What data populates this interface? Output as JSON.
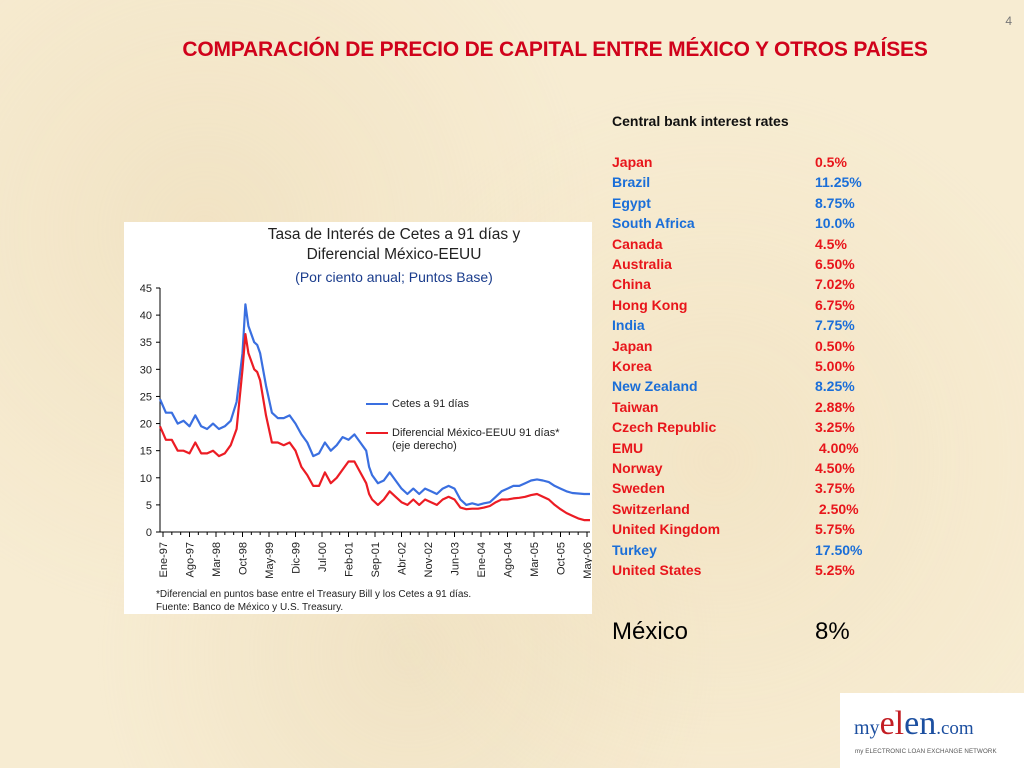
{
  "slide": {
    "number": "4",
    "title": "COMPARACIÓN DE PRECIO DE CAPITAL ENTRE MÉXICO Y OTROS PAÍSES"
  },
  "chart_data": {
    "type": "line",
    "title": "Tasa de Interés de Cetes a 91 días y",
    "title_line2": "Diferencial México-EEUU",
    "subtitle": "(Por ciento anual; Puntos Base)",
    "ylim": [
      0,
      45
    ],
    "yticks": [
      "0",
      "5",
      "10",
      "15",
      "20",
      "25",
      "30",
      "35",
      "40",
      "45"
    ],
    "x_ticks": [
      "Ene-97",
      "Ago-97",
      "Mar-98",
      "Oct-98",
      "May-99",
      "Dic-99",
      "Jul-00",
      "Feb-01",
      "Sep-01",
      "Abr-02",
      "Nov-02",
      "Jun-03",
      "Ene-04",
      "Ago-04",
      "Mar-05",
      "Oct-05",
      "May-06"
    ],
    "grid": false,
    "legend_position": "right",
    "series": [
      {
        "name": "Cetes a 91 días",
        "color": "#3a6fe0",
        "points": [
          [
            0,
            24.5
          ],
          [
            1,
            22
          ],
          [
            2,
            22
          ],
          [
            3,
            20
          ],
          [
            4,
            20.5
          ],
          [
            5,
            19.5
          ],
          [
            6,
            21.5
          ],
          [
            7,
            19.5
          ],
          [
            8,
            19
          ],
          [
            9,
            20
          ],
          [
            10,
            19
          ],
          [
            11,
            19.5
          ],
          [
            12,
            20.5
          ],
          [
            13,
            24
          ],
          [
            14,
            33
          ],
          [
            14.5,
            42
          ],
          [
            15,
            38
          ],
          [
            16,
            35
          ],
          [
            16.5,
            34.5
          ],
          [
            17,
            33
          ],
          [
            18,
            27
          ],
          [
            19,
            22
          ],
          [
            20,
            21
          ],
          [
            21,
            21
          ],
          [
            22,
            21.5
          ],
          [
            23,
            20
          ],
          [
            24,
            18
          ],
          [
            25,
            16.5
          ],
          [
            26,
            14
          ],
          [
            27,
            14.5
          ],
          [
            28,
            16.5
          ],
          [
            29,
            15
          ],
          [
            30,
            16
          ],
          [
            31,
            17.5
          ],
          [
            32,
            17
          ],
          [
            33,
            18
          ],
          [
            34,
            16.5
          ],
          [
            35,
            15
          ],
          [
            35.5,
            12
          ],
          [
            36,
            10.5
          ],
          [
            37,
            9
          ],
          [
            38,
            9.5
          ],
          [
            39,
            11
          ],
          [
            40,
            9.5
          ],
          [
            41,
            8
          ],
          [
            42,
            7
          ],
          [
            43,
            8
          ],
          [
            44,
            7
          ],
          [
            45,
            8
          ],
          [
            46,
            7.5
          ],
          [
            47,
            7
          ],
          [
            48,
            8
          ],
          [
            49,
            8.5
          ],
          [
            50,
            8
          ],
          [
            51,
            6
          ],
          [
            52,
            5
          ],
          [
            53,
            5.3
          ],
          [
            54,
            5
          ],
          [
            55,
            5.3
          ],
          [
            56,
            5.5
          ],
          [
            57,
            6.5
          ],
          [
            58,
            7.5
          ],
          [
            59,
            8
          ],
          [
            60,
            8.5
          ],
          [
            61,
            8.5
          ],
          [
            62,
            9
          ],
          [
            63,
            9.5
          ],
          [
            64,
            9.7
          ],
          [
            65,
            9.5
          ],
          [
            66,
            9.2
          ],
          [
            67,
            8.5
          ],
          [
            68,
            8
          ],
          [
            69,
            7.5
          ],
          [
            70,
            7.2
          ],
          [
            71,
            7.1
          ],
          [
            72,
            7
          ],
          [
            73,
            7
          ]
        ]
      },
      {
        "name": "Diferencial México-EEUU 91 días*",
        "name_line2": "(eje derecho)",
        "color": "#ec1c24",
        "points": [
          [
            0,
            19.5
          ],
          [
            1,
            17
          ],
          [
            2,
            17
          ],
          [
            3,
            15
          ],
          [
            4,
            15
          ],
          [
            5,
            14.5
          ],
          [
            6,
            16.5
          ],
          [
            7,
            14.5
          ],
          [
            8,
            14.5
          ],
          [
            9,
            15
          ],
          [
            10,
            14
          ],
          [
            11,
            14.5
          ],
          [
            12,
            16
          ],
          [
            13,
            19
          ],
          [
            14,
            30
          ],
          [
            14.5,
            36.5
          ],
          [
            15,
            33
          ],
          [
            16,
            30
          ],
          [
            16.5,
            29.5
          ],
          [
            17,
            28
          ],
          [
            18,
            21.5
          ],
          [
            19,
            16.5
          ],
          [
            20,
            16.5
          ],
          [
            21,
            16
          ],
          [
            22,
            16.5
          ],
          [
            23,
            15
          ],
          [
            24,
            12
          ],
          [
            25,
            10.5
          ],
          [
            26,
            8.5
          ],
          [
            27,
            8.5
          ],
          [
            28,
            11
          ],
          [
            29,
            9
          ],
          [
            30,
            10
          ],
          [
            31,
            11.5
          ],
          [
            32,
            13
          ],
          [
            33,
            13
          ],
          [
            34,
            11
          ],
          [
            35,
            9
          ],
          [
            35.5,
            7
          ],
          [
            36,
            6
          ],
          [
            37,
            5
          ],
          [
            38,
            6
          ],
          [
            39,
            7.5
          ],
          [
            40,
            6.5
          ],
          [
            41,
            5.5
          ],
          [
            42,
            5
          ],
          [
            43,
            6
          ],
          [
            44,
            5
          ],
          [
            45,
            6
          ],
          [
            46,
            5.5
          ],
          [
            47,
            5
          ],
          [
            48,
            6
          ],
          [
            49,
            6.5
          ],
          [
            50,
            6
          ],
          [
            51,
            4.5
          ],
          [
            52,
            4.2
          ],
          [
            53,
            4.3
          ],
          [
            54,
            4.3
          ],
          [
            55,
            4.5
          ],
          [
            56,
            4.8
          ],
          [
            57,
            5.5
          ],
          [
            58,
            6
          ],
          [
            59,
            6
          ],
          [
            60,
            6.2
          ],
          [
            61,
            6.3
          ],
          [
            62,
            6.5
          ],
          [
            63,
            6.8
          ],
          [
            64,
            7
          ],
          [
            65,
            6.5
          ],
          [
            66,
            6
          ],
          [
            67,
            5
          ],
          [
            68,
            4.2
          ],
          [
            69,
            3.5
          ],
          [
            70,
            3
          ],
          [
            71,
            2.5
          ],
          [
            72,
            2.2
          ],
          [
            73,
            2.2
          ]
        ]
      }
    ],
    "x_domain": [
      0,
      73
    ],
    "footnote_line1": "*Diferencial en puntos base entre el Treasury Bill y los Cetes a 91 días.",
    "footnote_line2": "Fuente: Banco de México y U.S. Treasury."
  },
  "rates": {
    "title": "Central bank interest rates",
    "rows": [
      {
        "country": "Japan",
        "value": "0.5%",
        "color": "#e8151b"
      },
      {
        "country": "Brazil",
        "value": "11.25%",
        "color": "#1a6ed8"
      },
      {
        "country": "Egypt",
        "value": "8.75%",
        "color": "#1a6ed8"
      },
      {
        "country": "South Africa",
        "value": "10.0%",
        "color": "#1a6ed8"
      },
      {
        "country": "Canada",
        "value": "4.5%",
        "color": "#e8151b"
      },
      {
        "country": "Australia",
        "value": "6.50%",
        "color": "#e8151b"
      },
      {
        "country": "China",
        "value": "7.02%",
        "color": "#e8151b"
      },
      {
        "country": "Hong Kong",
        "value": "6.75%",
        "color": "#e8151b"
      },
      {
        "country": "India",
        "value": "7.75%",
        "color": "#1a6ed8"
      },
      {
        "country": "Japan",
        "value": "0.50%",
        "color": "#e8151b"
      },
      {
        "country": "Korea",
        "value": "5.00%",
        "color": "#e8151b"
      },
      {
        "country": "New Zealand",
        "value": "8.25%",
        "color": "#1a6ed8"
      },
      {
        "country": "Taiwan",
        "value": "2.88%",
        "color": "#e8151b"
      },
      {
        "country": "Czech Republic",
        "value": "3.25%",
        "color": "#e8151b"
      },
      {
        "country": "EMU",
        "value": " 4.00%",
        "color": "#e8151b"
      },
      {
        "country": "Norway",
        "value": "4.50%",
        "color": "#e8151b"
      },
      {
        "country": "Sweden",
        "value": "3.75%",
        "color": "#e8151b"
      },
      {
        "country": "Switzerland",
        "value": " 2.50%",
        "color": "#e8151b"
      },
      {
        "country": "United Kingdom",
        "value": "5.75%",
        "color": "#e8151b"
      },
      {
        "country": "Turkey",
        "value": "17.50%",
        "color": "#1a6ed8"
      },
      {
        "country": "United States",
        "value": "5.25%",
        "color": "#e8151b"
      }
    ],
    "mexico": {
      "country": "México",
      "value": "8%"
    }
  },
  "logo": {
    "my": "my",
    "el": "el",
    "en": "en",
    "dotcom": ".com",
    "tagline": "my ELECTRONIC LOAN EXCHANGE NETWORK"
  }
}
